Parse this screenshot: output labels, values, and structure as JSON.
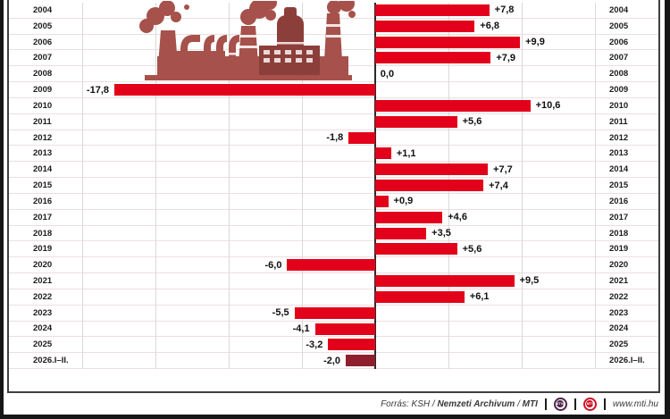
{
  "chart_data": {
    "type": "bar",
    "orientation": "horizontal",
    "categories": [
      "2004",
      "2005",
      "2006",
      "2007",
      "2008",
      "2009",
      "2010",
      "2011",
      "2012",
      "2013",
      "2014",
      "2015",
      "2016",
      "2017",
      "2018",
      "2019",
      "2020",
      "2021",
      "2022",
      "2023",
      "2024",
      "2025",
      "2026.I–II."
    ],
    "values": [
      7.8,
      6.8,
      9.9,
      7.9,
      0.0,
      -17.8,
      10.6,
      5.6,
      -1.8,
      1.1,
      7.7,
      7.4,
      0.9,
      4.6,
      3.5,
      5.6,
      -6.0,
      9.5,
      6.1,
      -5.5,
      -4.1,
      -3.2,
      -2.0
    ],
    "value_labels": [
      "+7,8",
      "+6,8",
      "+9,9",
      "+7,9",
      "0,0",
      "-17,8",
      "+10,6",
      "+5,6",
      "-1,8",
      "+1,1",
      "+7,7",
      "+7,4",
      "+0,9",
      "+4,6",
      "+3,5",
      "+5,6",
      "-6,0",
      "+9,5",
      "+6,1",
      "-5,5",
      "-4,1",
      "-3,2",
      "-2,0"
    ],
    "xlim": [
      -20.3,
      15.2
    ],
    "gridline_step": 5,
    "grid": true,
    "legend": false,
    "bar_color": "#e3001a",
    "partial_period_bar_color": "#8e1f2e",
    "axis_color": "#2b2b2b",
    "illustration": "factory-with-smokestacks",
    "illustration_color": "#a6514b"
  },
  "footer": {
    "source_label": "Forrás:",
    "source_ksh": "KSH",
    "sep1": "/",
    "source_archive": "Nemzeti Archivum",
    "sep2": "/",
    "source_mti": "MTI",
    "logo_mtva": "MTVA",
    "logo_mti": "MTI",
    "website": "www.mti.hu"
  }
}
